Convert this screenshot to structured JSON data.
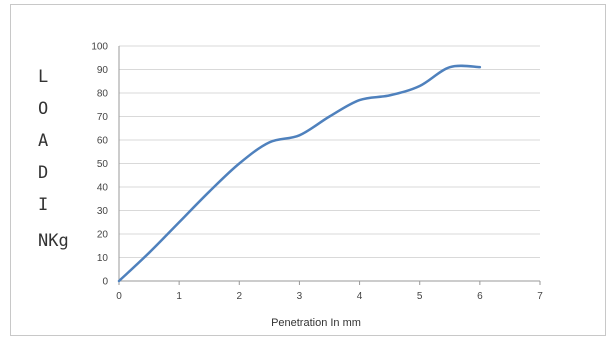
{
  "chart_data": {
    "type": "line",
    "title": "",
    "xlabel": "Penetration In mm",
    "ylabel_lines": [
      "L",
      "O",
      "A",
      "D",
      "I",
      "NKg"
    ],
    "xlim": [
      0,
      7
    ],
    "ylim": [
      0,
      100
    ],
    "x_ticks": [
      0,
      1,
      2,
      3,
      4,
      5,
      6,
      7
    ],
    "y_ticks": [
      0,
      10,
      20,
      30,
      40,
      50,
      60,
      70,
      80,
      90,
      100
    ],
    "grid": true,
    "line_color": "#4f81bd",
    "series": [
      {
        "x": [
          0,
          0.5,
          1,
          1.5,
          2,
          2.5,
          3,
          3.5,
          4,
          4.5,
          5,
          5.5,
          6
        ],
        "y": [
          0,
          12,
          25,
          38,
          50,
          59,
          62,
          70,
          77,
          79,
          83,
          91,
          91
        ]
      }
    ]
  }
}
